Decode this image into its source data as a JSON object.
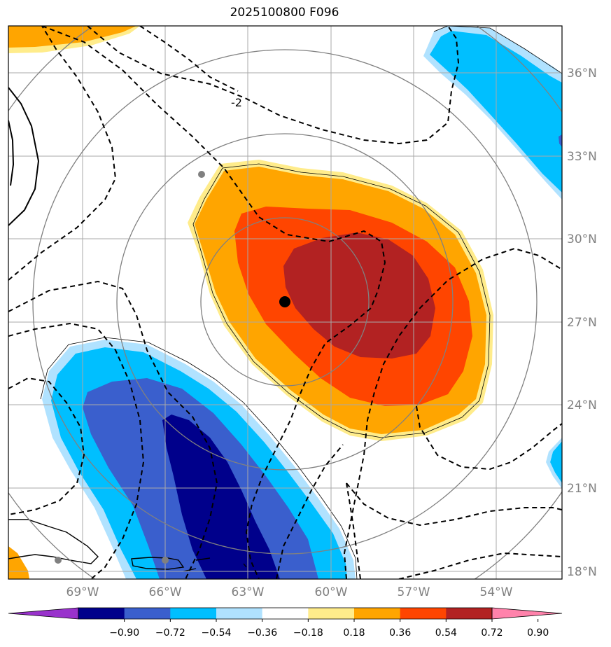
{
  "title": "2025100800 F096",
  "map": {
    "lon_range": [
      -71.5,
      -51.5
    ],
    "lat_range": [
      17.5,
      37.5
    ],
    "lon_ticks": [
      {
        "value": -69,
        "label": "69°W"
      },
      {
        "value": -66,
        "label": "66°W"
      },
      {
        "value": -63,
        "label": "63°W"
      },
      {
        "value": -60,
        "label": "60°W"
      },
      {
        "value": -57,
        "label": "57°W"
      },
      {
        "value": -54,
        "label": "54°W"
      }
    ],
    "lat_ticks": [
      {
        "value": 18,
        "label": "18°N"
      },
      {
        "value": 21,
        "label": "21°N"
      },
      {
        "value": 24,
        "label": "24°N"
      },
      {
        "value": 27,
        "label": "27°N"
      },
      {
        "value": 30,
        "label": "30°N"
      },
      {
        "value": 33,
        "label": "33°N"
      },
      {
        "value": 36,
        "label": "36°N"
      }
    ],
    "center": {
      "lon": -61.6,
      "lat": 27.7
    },
    "contour_label": "-2"
  },
  "colorbar": {
    "colors": [
      "#9932cc",
      "#00008b",
      "#3a5fcd",
      "#00bfff",
      "#b0e2ff",
      "#ffffff",
      "#ffec8b",
      "#ffa500",
      "#ff4500",
      "#b22222",
      "#ff82ab"
    ],
    "labels": [
      "−0.90",
      "−0.72",
      "−0.54",
      "−0.36",
      "−0.18",
      "0.18",
      "0.36",
      "0.54",
      "0.72",
      "0.90"
    ]
  }
}
